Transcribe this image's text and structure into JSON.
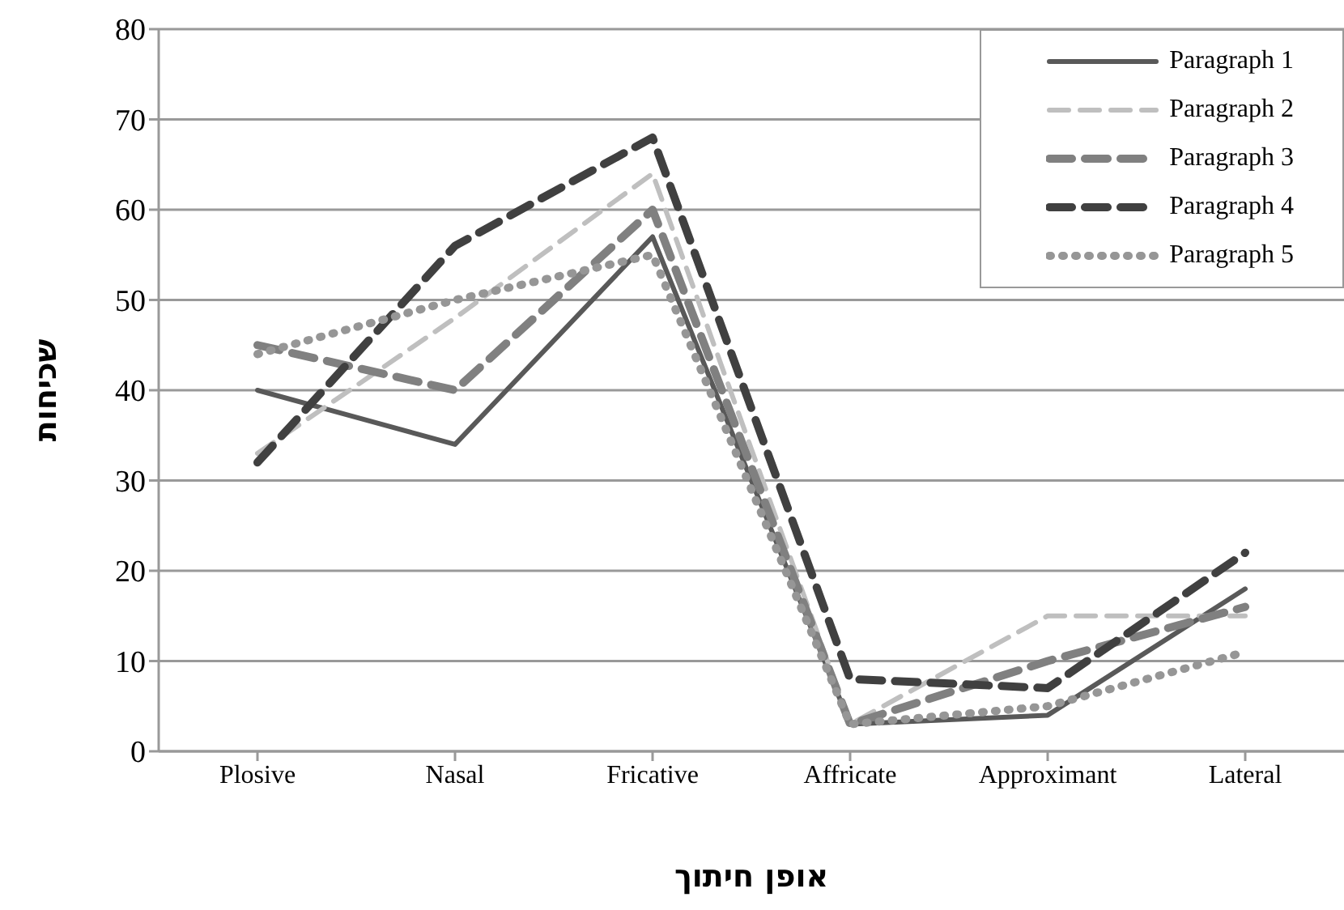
{
  "chart_data": {
    "type": "line",
    "xlabel": "אופן חיתוך",
    "ylabel": "שכיחות",
    "categories": [
      "Plosive",
      "Nasal",
      "Fricative",
      "Affricate",
      "Approximant",
      "Lateral"
    ],
    "series": [
      {
        "name": "Paragraph 1",
        "color": "#595959",
        "line_style": "solid",
        "values": [
          40,
          34,
          57,
          3,
          4,
          18
        ]
      },
      {
        "name": "Paragraph 2",
        "color": "#bfbfbf",
        "line_style": "dashed",
        "values": [
          33,
          48,
          64,
          3,
          15,
          15
        ]
      },
      {
        "name": "Paragraph 3",
        "color": "#808080",
        "line_style": "dashed",
        "values": [
          45,
          40,
          60,
          3,
          10,
          16
        ]
      },
      {
        "name": "Paragraph 4",
        "color": "#404040",
        "line_style": "dashed",
        "values": [
          32,
          56,
          68,
          8,
          7,
          22
        ]
      },
      {
        "name": "Paragraph 5",
        "color": "#969696",
        "line_style": "dotted",
        "values": [
          44,
          50,
          55,
          3,
          5,
          11
        ]
      }
    ],
    "ylim": [
      0,
      80
    ],
    "yticks": [
      0,
      10,
      20,
      30,
      40,
      50,
      60,
      70,
      80
    ],
    "grid": "y",
    "legend": "top right",
    "marker": "none"
  }
}
